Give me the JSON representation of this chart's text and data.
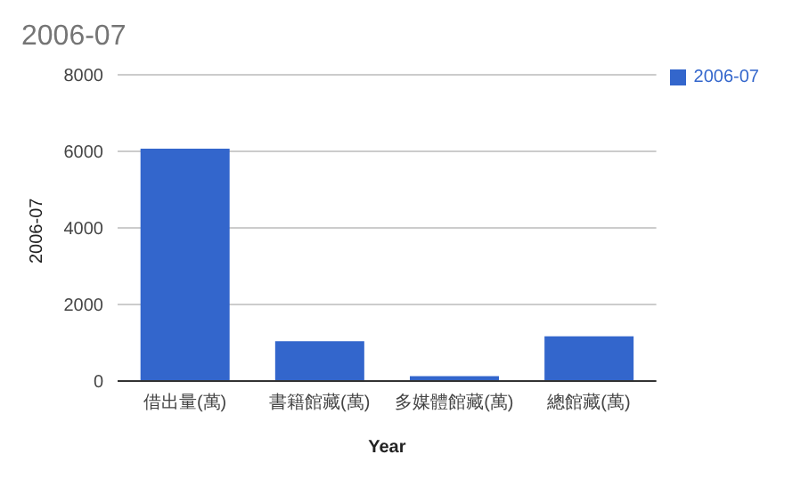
{
  "chart_data": {
    "type": "bar",
    "title": "2006-07",
    "xlabel": "Year",
    "ylabel": "2006-07",
    "categories": [
      "借出量(萬)",
      "書籍館藏(萬)",
      "多媒體館藏(萬)",
      "總館藏(萬)"
    ],
    "series": [
      {
        "name": "2006-07",
        "color": "#3366cc",
        "values": [
          6070,
          1040,
          130,
          1170
        ]
      }
    ],
    "ylim": [
      0,
      8000
    ],
    "yticks": [
      0,
      2000,
      4000,
      6000,
      8000
    ],
    "grid": "y",
    "legend": "top right"
  }
}
